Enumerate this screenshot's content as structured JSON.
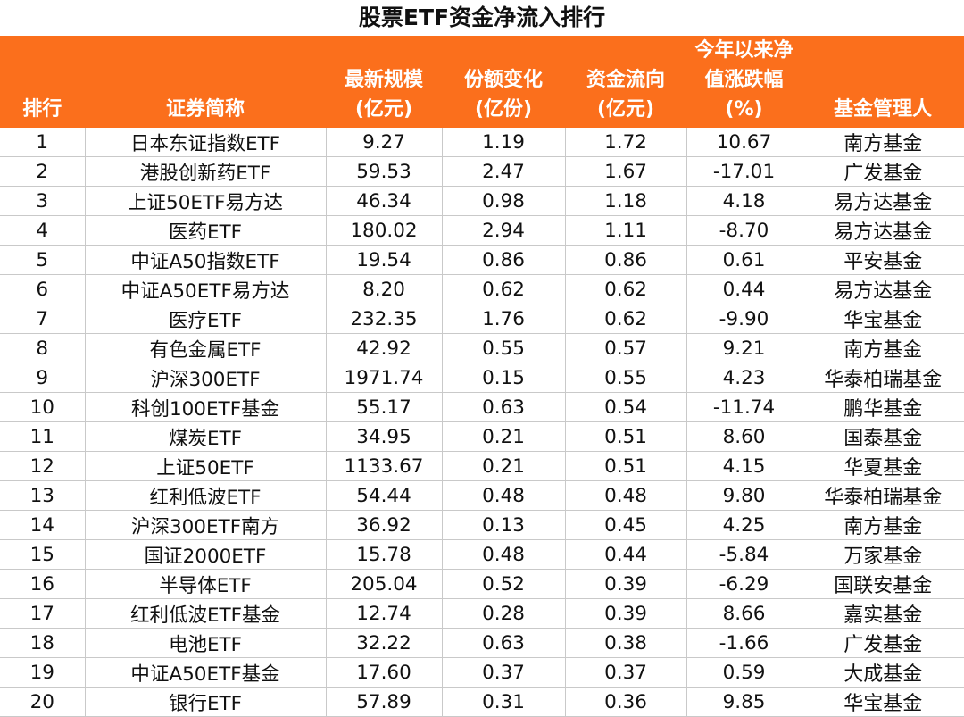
{
  "title": "股票ETF资金净流入排行",
  "header": {
    "rank": [
      "排行"
    ],
    "name": [
      "证券简称"
    ],
    "scale": [
      "最新规模",
      "(亿元)"
    ],
    "share": [
      "份额变化",
      "(亿份)"
    ],
    "flow": [
      "资金流向",
      "(亿元)"
    ],
    "nav": [
      "今年以来净",
      "值涨跌幅",
      "(%)"
    ],
    "manager": [
      "基金管理人"
    ]
  },
  "rows": [
    {
      "rank": "1",
      "name": "日本东证指数ETF",
      "scale": "9.27",
      "share": "1.19",
      "flow": "1.72",
      "nav": "10.67",
      "manager": "南方基金"
    },
    {
      "rank": "2",
      "name": "港股创新药ETF",
      "scale": "59.53",
      "share": "2.47",
      "flow": "1.67",
      "nav": "-17.01",
      "manager": "广发基金"
    },
    {
      "rank": "3",
      "name": "上证50ETF易方达",
      "scale": "46.34",
      "share": "0.98",
      "flow": "1.18",
      "nav": "4.18",
      "manager": "易方达基金"
    },
    {
      "rank": "4",
      "name": "医药ETF",
      "scale": "180.02",
      "share": "2.94",
      "flow": "1.11",
      "nav": "-8.70",
      "manager": "易方达基金"
    },
    {
      "rank": "5",
      "name": "中证A50指数ETF",
      "scale": "19.54",
      "share": "0.86",
      "flow": "0.86",
      "nav": "0.61",
      "manager": "平安基金"
    },
    {
      "rank": "6",
      "name": "中证A50ETF易方达",
      "scale": "8.20",
      "share": "0.62",
      "flow": "0.62",
      "nav": "0.44",
      "manager": "易方达基金"
    },
    {
      "rank": "7",
      "name": "医疗ETF",
      "scale": "232.35",
      "share": "1.76",
      "flow": "0.62",
      "nav": "-9.90",
      "manager": "华宝基金"
    },
    {
      "rank": "8",
      "name": "有色金属ETF",
      "scale": "42.92",
      "share": "0.55",
      "flow": "0.57",
      "nav": "9.21",
      "manager": "南方基金"
    },
    {
      "rank": "9",
      "name": "沪深300ETF",
      "scale": "1971.74",
      "share": "0.15",
      "flow": "0.55",
      "nav": "4.23",
      "manager": "华泰柏瑞基金"
    },
    {
      "rank": "10",
      "name": "科创100ETF基金",
      "scale": "55.17",
      "share": "0.63",
      "flow": "0.54",
      "nav": "-11.74",
      "manager": "鹏华基金"
    },
    {
      "rank": "11",
      "name": "煤炭ETF",
      "scale": "34.95",
      "share": "0.21",
      "flow": "0.51",
      "nav": "8.60",
      "manager": "国泰基金"
    },
    {
      "rank": "12",
      "name": "上证50ETF",
      "scale": "1133.67",
      "share": "0.21",
      "flow": "0.51",
      "nav": "4.15",
      "manager": "华夏基金"
    },
    {
      "rank": "13",
      "name": "红利低波ETF",
      "scale": "54.44",
      "share": "0.48",
      "flow": "0.48",
      "nav": "9.80",
      "manager": "华泰柏瑞基金"
    },
    {
      "rank": "14",
      "name": "沪深300ETF南方",
      "scale": "36.92",
      "share": "0.13",
      "flow": "0.45",
      "nav": "4.25",
      "manager": "南方基金"
    },
    {
      "rank": "15",
      "name": "国证2000ETF",
      "scale": "15.78",
      "share": "0.48",
      "flow": "0.44",
      "nav": "-5.84",
      "manager": "万家基金"
    },
    {
      "rank": "16",
      "name": "半导体ETF",
      "scale": "205.04",
      "share": "0.52",
      "flow": "0.39",
      "nav": "-6.29",
      "manager": "国联安基金"
    },
    {
      "rank": "17",
      "name": "红利低波ETF基金",
      "scale": "12.74",
      "share": "0.28",
      "flow": "0.39",
      "nav": "8.66",
      "manager": "嘉实基金"
    },
    {
      "rank": "18",
      "name": "电池ETF",
      "scale": "32.22",
      "share": "0.63",
      "flow": "0.38",
      "nav": "-1.66",
      "manager": "广发基金"
    },
    {
      "rank": "19",
      "name": "中证A50ETF基金",
      "scale": "17.60",
      "share": "0.37",
      "flow": "0.37",
      "nav": "0.59",
      "manager": "大成基金"
    },
    {
      "rank": "20",
      "name": "银行ETF",
      "scale": "57.89",
      "share": "0.31",
      "flow": "0.36",
      "nav": "9.85",
      "manager": "华宝基金"
    }
  ],
  "colors": {
    "header_bg": "#fb6f1c",
    "header_text": "#ffffff",
    "grid": "#c9c9c9"
  }
}
